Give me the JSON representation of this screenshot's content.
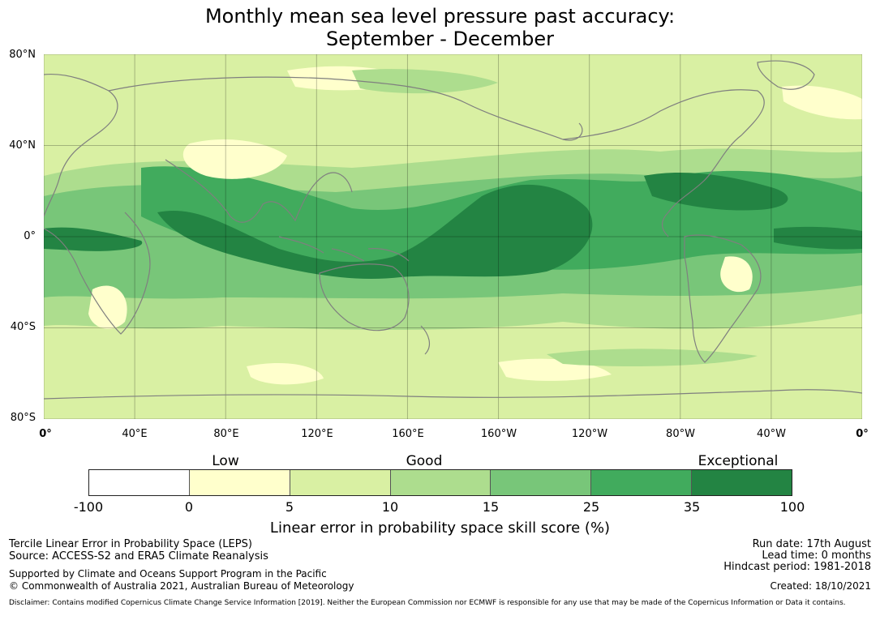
{
  "title_line1": "Monthly mean sea level pressure past accuracy:",
  "title_line2": "September - December",
  "map": {
    "lat_labels": [
      "80°N",
      "40°N",
      "0°",
      "40°S",
      "80°S"
    ],
    "lon_labels": [
      "0°",
      "40°E",
      "80°E",
      "120°E",
      "160°E",
      "160°W",
      "120°W",
      "80°W",
      "40°W",
      "0°"
    ],
    "lon_extent": [
      0,
      360
    ],
    "lat_extent": [
      -80,
      80
    ],
    "gridlines": true,
    "coastline_color": "#7f7f7f"
  },
  "colorbar": {
    "categories": [
      "Low",
      "Good",
      "Exceptional"
    ],
    "boundaries": [
      "-100",
      "0",
      "5",
      "10",
      "15",
      "25",
      "35",
      "100"
    ],
    "colors": [
      "#ffffff",
      "#ffffcc",
      "#d9f0a3",
      "#addd8e",
      "#78c679",
      "#41ab5d",
      "#238443"
    ],
    "label": "Linear error in probability space skill score (%)"
  },
  "footer": {
    "metric": "Tercile Linear Error in Probability Space (LEPS)",
    "source": "Source: ACCESS-S2 and ERA5 Climate Reanalysis",
    "support": "Supported by Climate and Oceans Support Program in the Pacific",
    "copyright": "© Commonwealth of Australia 2021, Australian Bureau of Meteorology",
    "run_date": "Run date: 17th August",
    "lead_time": "Lead time: 0 months",
    "hindcast": "Hindcast period: 1981-2018",
    "created": "Created: 18/10/2021",
    "disclaimer": "Disclaimer: Contains modified Copernicus Climate Change Service Information [2019]. Neither the European Commission nor ECMWF is responsible for any use that may be made of the Copernicus Information or Data it contains."
  }
}
